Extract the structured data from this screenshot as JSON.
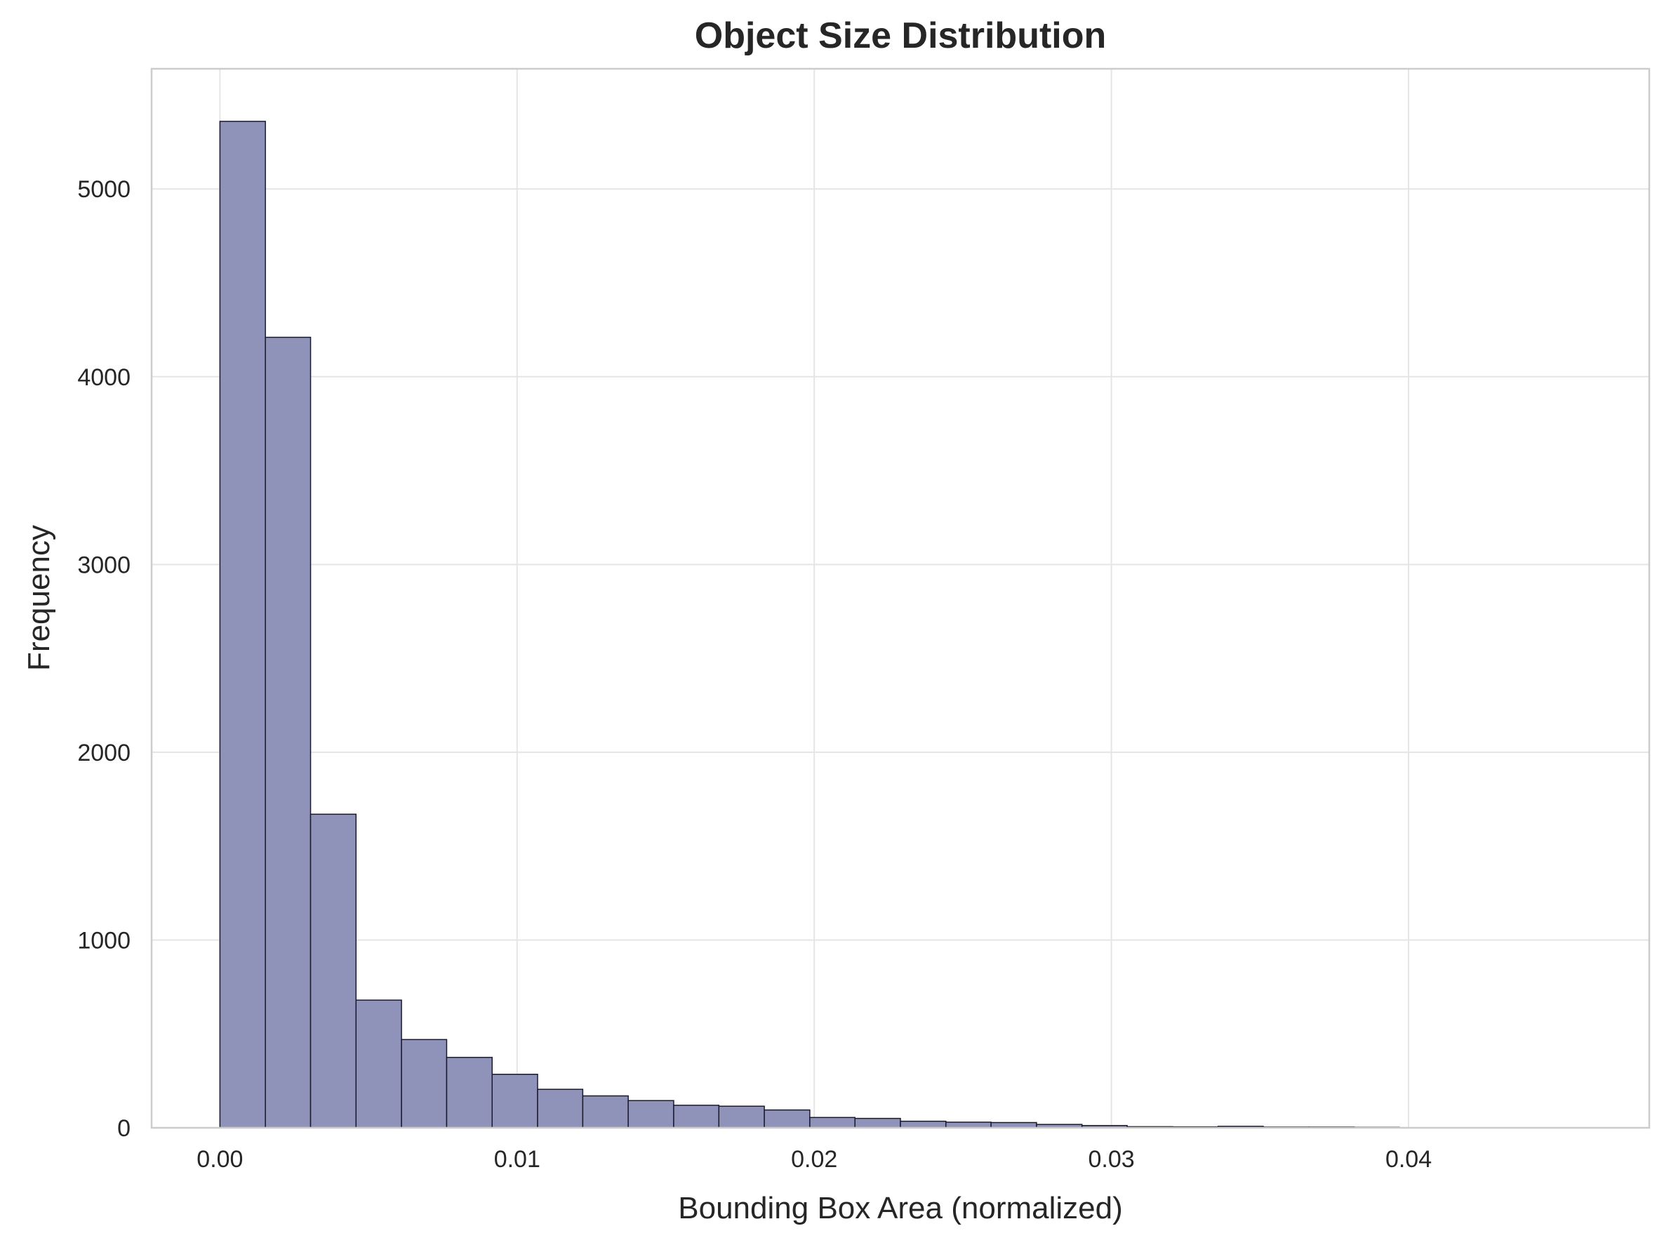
{
  "chart_data": {
    "type": "bar",
    "title": "Object Size Distribution",
    "xlabel": "Bounding Box Area (normalized)",
    "ylabel": "Frequency",
    "xlim": [
      -0.0023,
      0.0481
    ],
    "ylim": [
      0,
      5640
    ],
    "x_ticks": [
      "0.00",
      "0.01",
      "0.02",
      "0.03",
      "0.04"
    ],
    "x_tick_values": [
      0.0,
      0.01,
      0.02,
      0.03,
      0.04
    ],
    "y_ticks": [
      "0",
      "1000",
      "2000",
      "3000",
      "4000",
      "5000"
    ],
    "y_tick_values": [
      0,
      1000,
      2000,
      3000,
      4000,
      5000
    ],
    "grid": true,
    "bar_color": "#8f93ba",
    "bar_edge_color": "#1a1a2e",
    "bins": [
      {
        "x0": 0.0,
        "x1": 0.00153,
        "value": 5360
      },
      {
        "x0": 0.00153,
        "x1": 0.00305,
        "value": 4210
      },
      {
        "x0": 0.00305,
        "x1": 0.00458,
        "value": 1670
      },
      {
        "x0": 0.00458,
        "x1": 0.00611,
        "value": 680
      },
      {
        "x0": 0.00611,
        "x1": 0.00763,
        "value": 470
      },
      {
        "x0": 0.00763,
        "x1": 0.00916,
        "value": 375
      },
      {
        "x0": 0.00916,
        "x1": 0.01069,
        "value": 285
      },
      {
        "x0": 0.01069,
        "x1": 0.01221,
        "value": 205
      },
      {
        "x0": 0.01221,
        "x1": 0.01374,
        "value": 170
      },
      {
        "x0": 0.01374,
        "x1": 0.01527,
        "value": 145
      },
      {
        "x0": 0.01527,
        "x1": 0.01679,
        "value": 120
      },
      {
        "x0": 0.01679,
        "x1": 0.01832,
        "value": 115
      },
      {
        "x0": 0.01832,
        "x1": 0.01985,
        "value": 95
      },
      {
        "x0": 0.01985,
        "x1": 0.02137,
        "value": 55
      },
      {
        "x0": 0.02137,
        "x1": 0.0229,
        "value": 50
      },
      {
        "x0": 0.0229,
        "x1": 0.02443,
        "value": 35
      },
      {
        "x0": 0.02443,
        "x1": 0.02595,
        "value": 30
      },
      {
        "x0": 0.02595,
        "x1": 0.02748,
        "value": 28
      },
      {
        "x0": 0.02748,
        "x1": 0.02901,
        "value": 18
      },
      {
        "x0": 0.02901,
        "x1": 0.03053,
        "value": 12
      },
      {
        "x0": 0.03053,
        "x1": 0.03206,
        "value": 6
      },
      {
        "x0": 0.03206,
        "x1": 0.03359,
        "value": 5
      },
      {
        "x0": 0.03359,
        "x1": 0.03511,
        "value": 8
      },
      {
        "x0": 0.03511,
        "x1": 0.03664,
        "value": 4
      },
      {
        "x0": 0.03664,
        "x1": 0.03817,
        "value": 4
      },
      {
        "x0": 0.03817,
        "x1": 0.03969,
        "value": 3
      }
    ]
  }
}
